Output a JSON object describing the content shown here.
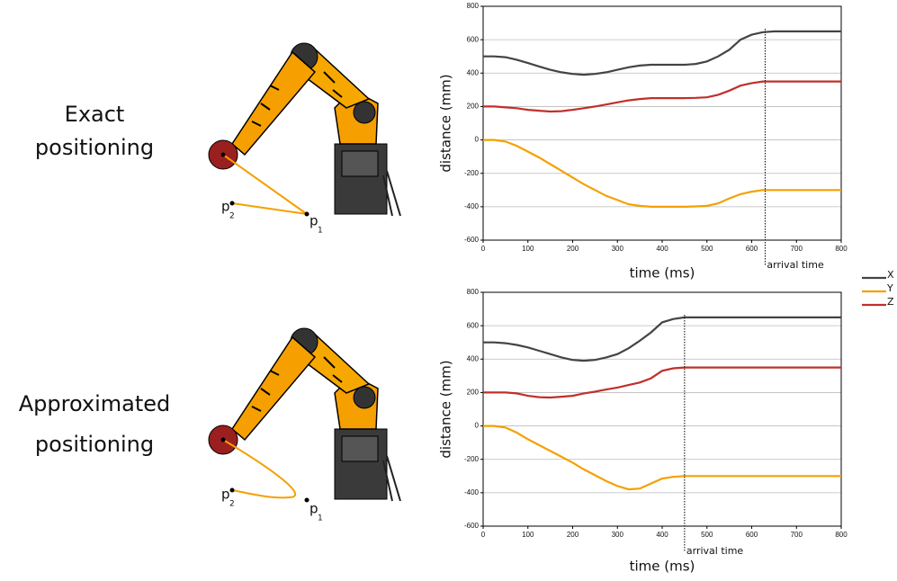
{
  "illustrations": [
    {
      "caption": [
        "Exact",
        "positioning"
      ],
      "point_labels": [
        {
          "letter": "p",
          "index": "2"
        },
        {
          "letter": "p",
          "index": "1"
        }
      ]
    },
    {
      "caption": [
        "Approximated",
        "positioning"
      ],
      "point_labels": [
        {
          "letter": "p",
          "index": "2"
        },
        {
          "letter": "p",
          "index": "1"
        }
      ]
    }
  ],
  "chart_data": [
    {
      "type": "line",
      "xlabel": "time (ms)",
      "ylabel": "distance (mm)",
      "x": [
        0,
        25,
        50,
        75,
        100,
        125,
        150,
        175,
        200,
        225,
        250,
        275,
        300,
        325,
        350,
        375,
        400,
        425,
        450,
        475,
        500,
        525,
        550,
        575,
        600,
        625,
        650,
        700,
        750,
        800
      ],
      "series": [
        {
          "name": "X",
          "color": "#444444",
          "values": [
            500,
            500,
            495,
            480,
            460,
            440,
            420,
            405,
            395,
            390,
            395,
            405,
            420,
            435,
            445,
            450,
            450,
            450,
            450,
            455,
            470,
            500,
            540,
            600,
            630,
            645,
            650,
            650,
            650,
            650
          ]
        },
        {
          "name": "Y",
          "color": "#f5a000",
          "values": [
            0,
            0,
            -10,
            -35,
            -70,
            -105,
            -145,
            -185,
            -225,
            -265,
            -300,
            -335,
            -360,
            -385,
            -395,
            -400,
            -400,
            -400,
            -400,
            -398,
            -395,
            -380,
            -350,
            -325,
            -310,
            -300,
            -300,
            -300,
            -300,
            -300
          ]
        },
        {
          "name": "Z",
          "color": "#c0302a",
          "values": [
            200,
            200,
            195,
            190,
            180,
            175,
            170,
            172,
            180,
            190,
            200,
            212,
            225,
            237,
            245,
            250,
            250,
            250,
            250,
            252,
            255,
            270,
            295,
            325,
            340,
            350,
            350,
            350,
            350,
            350
          ]
        }
      ],
      "xlim": [
        0,
        800
      ],
      "xticks": [
        0,
        100,
        200,
        300,
        400,
        500,
        600,
        700,
        800
      ],
      "ylim": [
        -600,
        800
      ],
      "yticks": [
        -600,
        -400,
        -200,
        0,
        200,
        400,
        600,
        800
      ],
      "grid": true,
      "legend": "right",
      "annotation": {
        "text": "arrival time",
        "x": 630
      }
    },
    {
      "type": "line",
      "xlabel": "time (ms)",
      "ylabel": "distance (mm)",
      "x": [
        0,
        25,
        50,
        75,
        100,
        125,
        150,
        175,
        200,
        225,
        250,
        275,
        300,
        325,
        350,
        375,
        400,
        425,
        450,
        475,
        500,
        525,
        550,
        575,
        600,
        625,
        650,
        700,
        750,
        800
      ],
      "series": [
        {
          "color": "#444444",
          "values": [
            500,
            500,
            495,
            485,
            470,
            450,
            430,
            410,
            395,
            390,
            395,
            410,
            430,
            465,
            510,
            560,
            620,
            640,
            650,
            650,
            650,
            650,
            650,
            650,
            650,
            650,
            650,
            650,
            650,
            650
          ]
        },
        {
          "color": "#f5a000",
          "values": [
            0,
            0,
            -10,
            -40,
            -80,
            -115,
            -150,
            -185,
            -220,
            -260,
            -295,
            -330,
            -360,
            -380,
            -375,
            -345,
            -315,
            -305,
            -300,
            -300,
            -300,
            -300,
            -300,
            -300,
            -300,
            -300,
            -300,
            -300,
            -300,
            -300
          ]
        },
        {
          "color": "#c0302a",
          "values": [
            200,
            200,
            200,
            195,
            180,
            172,
            170,
            175,
            180,
            195,
            205,
            218,
            230,
            245,
            260,
            285,
            330,
            345,
            350,
            350,
            350,
            350,
            350,
            350,
            350,
            350,
            350,
            350,
            350,
            350
          ]
        }
      ],
      "xlim": [
        0,
        800
      ],
      "xticks": [
        0,
        100,
        200,
        300,
        400,
        500,
        600,
        700,
        800
      ],
      "ylim": [
        -600,
        800
      ],
      "yticks": [
        -600,
        -400,
        -200,
        0,
        200,
        400,
        600,
        800
      ],
      "grid": true,
      "annotation": {
        "text": "arrival time",
        "x": 450
      }
    }
  ]
}
